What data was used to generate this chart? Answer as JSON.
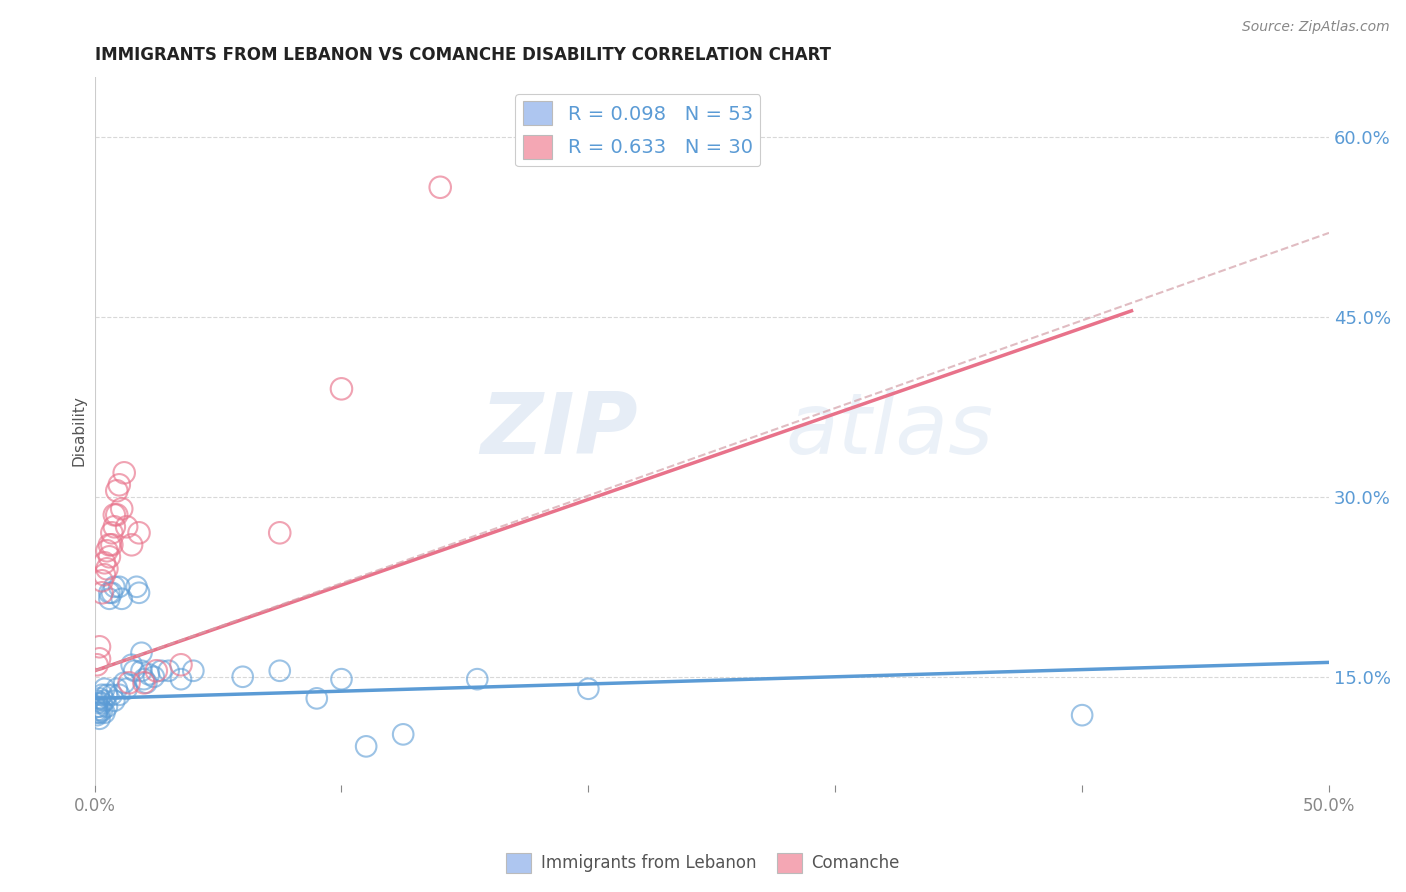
{
  "title": "IMMIGRANTS FROM LEBANON VS COMANCHE DISABILITY CORRELATION CHART",
  "source": "Source: ZipAtlas.com",
  "ylabel": "Disability",
  "right_yticks": [
    "60.0%",
    "45.0%",
    "30.0%",
    "15.0%"
  ],
  "right_ytick_vals": [
    0.6,
    0.45,
    0.3,
    0.15
  ],
  "xlim": [
    0.0,
    0.5
  ],
  "ylim": [
    0.06,
    0.65
  ],
  "legend1_label": "R = 0.098   N = 53",
  "legend2_label": "R = 0.633   N = 30",
  "legend_color1": "#aec6f0",
  "legend_color2": "#f4a7b4",
  "watermark_zip": "ZIP",
  "watermark_atlas": "atlas",
  "blue_color": "#5b9bd5",
  "pink_color": "#e8728a",
  "blue_scatter": [
    [
      0.001,
      0.13
    ],
    [
      0.001,
      0.128
    ],
    [
      0.001,
      0.125
    ],
    [
      0.001,
      0.122
    ],
    [
      0.001,
      0.12
    ],
    [
      0.001,
      0.118
    ],
    [
      0.002,
      0.132
    ],
    [
      0.002,
      0.125
    ],
    [
      0.002,
      0.12
    ],
    [
      0.002,
      0.115
    ],
    [
      0.003,
      0.135
    ],
    [
      0.003,
      0.128
    ],
    [
      0.003,
      0.122
    ],
    [
      0.004,
      0.14
    ],
    [
      0.004,
      0.13
    ],
    [
      0.004,
      0.12
    ],
    [
      0.005,
      0.135
    ],
    [
      0.005,
      0.125
    ],
    [
      0.006,
      0.22
    ],
    [
      0.006,
      0.215
    ],
    [
      0.007,
      0.22
    ],
    [
      0.007,
      0.135
    ],
    [
      0.008,
      0.225
    ],
    [
      0.008,
      0.13
    ],
    [
      0.009,
      0.14
    ],
    [
      0.01,
      0.225
    ],
    [
      0.01,
      0.135
    ],
    [
      0.011,
      0.215
    ],
    [
      0.012,
      0.145
    ],
    [
      0.013,
      0.14
    ],
    [
      0.015,
      0.16
    ],
    [
      0.016,
      0.155
    ],
    [
      0.017,
      0.225
    ],
    [
      0.018,
      0.22
    ],
    [
      0.019,
      0.17
    ],
    [
      0.019,
      0.155
    ],
    [
      0.02,
      0.148
    ],
    [
      0.021,
      0.145
    ],
    [
      0.022,
      0.152
    ],
    [
      0.024,
      0.15
    ],
    [
      0.027,
      0.155
    ],
    [
      0.03,
      0.155
    ],
    [
      0.035,
      0.148
    ],
    [
      0.04,
      0.155
    ],
    [
      0.06,
      0.15
    ],
    [
      0.075,
      0.155
    ],
    [
      0.09,
      0.132
    ],
    [
      0.1,
      0.148
    ],
    [
      0.11,
      0.092
    ],
    [
      0.125,
      0.102
    ],
    [
      0.155,
      0.148
    ],
    [
      0.2,
      0.14
    ],
    [
      0.4,
      0.118
    ]
  ],
  "pink_scatter": [
    [
      0.001,
      0.16
    ],
    [
      0.002,
      0.175
    ],
    [
      0.002,
      0.165
    ],
    [
      0.003,
      0.23
    ],
    [
      0.003,
      0.22
    ],
    [
      0.004,
      0.245
    ],
    [
      0.004,
      0.235
    ],
    [
      0.005,
      0.255
    ],
    [
      0.005,
      0.24
    ],
    [
      0.006,
      0.26
    ],
    [
      0.006,
      0.25
    ],
    [
      0.007,
      0.27
    ],
    [
      0.007,
      0.26
    ],
    [
      0.008,
      0.285
    ],
    [
      0.008,
      0.275
    ],
    [
      0.009,
      0.305
    ],
    [
      0.009,
      0.285
    ],
    [
      0.01,
      0.31
    ],
    [
      0.011,
      0.29
    ],
    [
      0.012,
      0.32
    ],
    [
      0.013,
      0.275
    ],
    [
      0.014,
      0.145
    ],
    [
      0.015,
      0.26
    ],
    [
      0.018,
      0.27
    ],
    [
      0.02,
      0.145
    ],
    [
      0.025,
      0.155
    ],
    [
      0.035,
      0.16
    ],
    [
      0.075,
      0.27
    ],
    [
      0.1,
      0.39
    ],
    [
      0.14,
      0.558
    ]
  ],
  "blue_line_x": [
    0.0,
    0.5
  ],
  "blue_line_y": [
    0.132,
    0.162
  ],
  "pink_line_x": [
    0.0,
    0.42
  ],
  "pink_line_y": [
    0.155,
    0.455
  ],
  "dashed_line_x": [
    0.0,
    0.5
  ],
  "dashed_line_y": [
    0.155,
    0.52
  ],
  "background_color": "#ffffff",
  "grid_color": "#d8d8d8"
}
